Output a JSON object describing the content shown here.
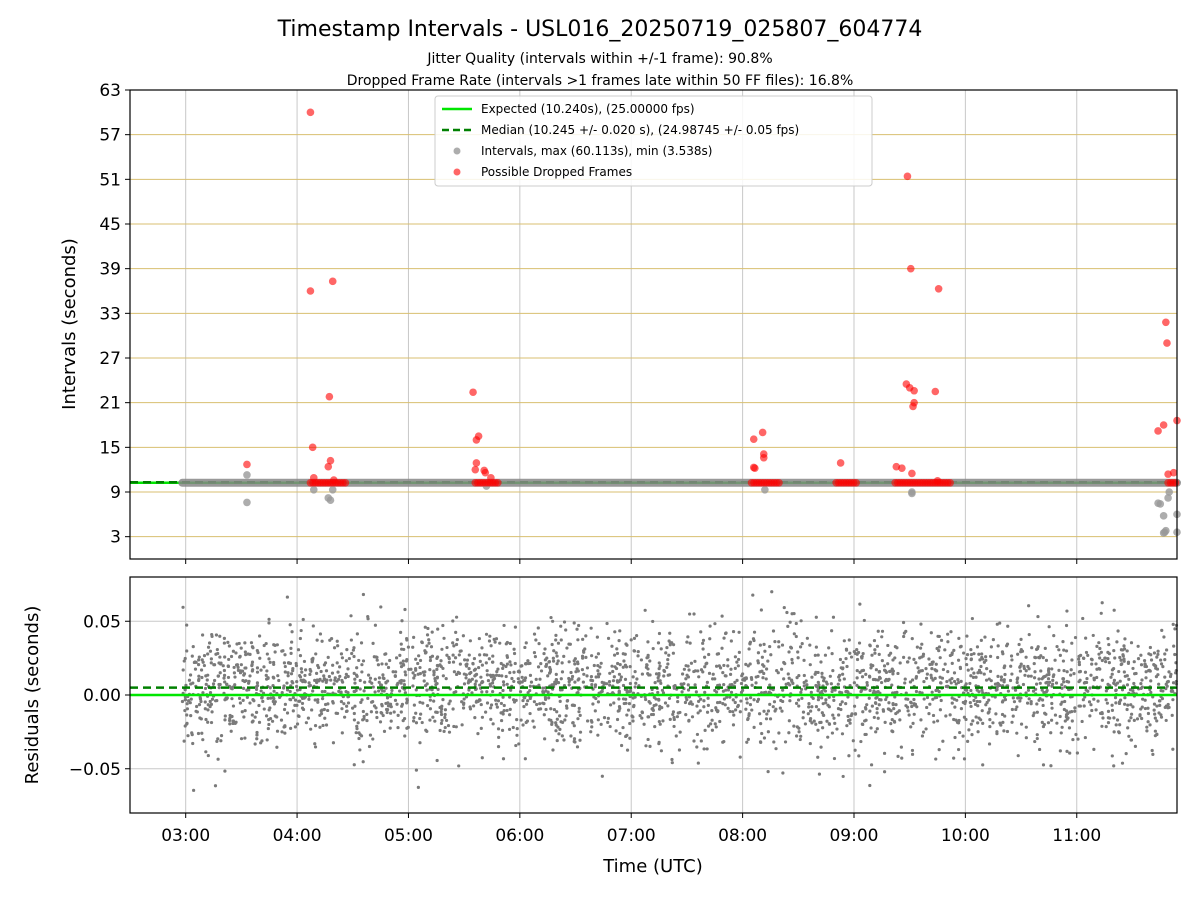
{
  "chart_data": [
    {
      "type": "scatter",
      "title": "Timestamp Intervals - USL016_20250719_025807_604774",
      "subtitle_lines": [
        "Jitter Quality (intervals within +/-1 frame): 90.8%",
        "Dropped Frame Rate (intervals >1 frames late within 50 FF files): 16.8%"
      ],
      "xlabel": "",
      "ylabel": "Intervals (seconds)",
      "x_unit": "time UTC (hours)",
      "xlim": [
        2.5,
        11.9
      ],
      "ylim": [
        0,
        63
      ],
      "y_ticks": [
        3,
        9,
        15,
        21,
        27,
        33,
        39,
        45,
        51,
        57,
        63
      ],
      "x_ticks": [
        3,
        4,
        5,
        6,
        7,
        8,
        9,
        10,
        11
      ],
      "grid": true,
      "legend_position": "top-center",
      "legend": {
        "expected": "Expected (10.240s), (25.00000 fps)",
        "median": "Median (10.245 +/- 0.020 s), (24.98745 +/- 0.05 fps)",
        "intervals": "Intervals, max (60.113s), min (3.538s)",
        "dropped": "Possible Dropped Frames"
      },
      "expected_value": 10.24,
      "median_value": 10.245,
      "colors": {
        "expected": "#00e600",
        "median": "#008000",
        "intervals": "#999999",
        "dropped": "#ff0000",
        "hgrid": "#d8bf70",
        "vgrid": "#c8c8c8"
      },
      "baseline_series": {
        "name": "Intervals, max (60.113s), min (3.538s)",
        "x_range": [
          2.97,
          11.9
        ],
        "y": 10.24
      },
      "interval_points": [
        {
          "x": 3.55,
          "y": 11.3
        },
        {
          "x": 3.55,
          "y": 7.6
        },
        {
          "x": 4.15,
          "y": 9.3
        },
        {
          "x": 4.3,
          "y": 7.9
        },
        {
          "x": 4.28,
          "y": 8.2
        },
        {
          "x": 4.32,
          "y": 9.3
        },
        {
          "x": 5.7,
          "y": 9.8
        },
        {
          "x": 8.2,
          "y": 9.3
        },
        {
          "x": 9.52,
          "y": 9.0
        },
        {
          "x": 9.52,
          "y": 8.8
        },
        {
          "x": 11.73,
          "y": 7.5
        },
        {
          "x": 11.75,
          "y": 7.4
        },
        {
          "x": 11.78,
          "y": 5.8
        },
        {
          "x": 11.79,
          "y": 3.6
        },
        {
          "x": 11.8,
          "y": 3.8
        },
        {
          "x": 11.82,
          "y": 8.2
        },
        {
          "x": 11.83,
          "y": 9.0
        },
        {
          "x": 11.9,
          "y": 6.0
        },
        {
          "x": 11.9,
          "y": 3.6
        },
        {
          "x": 11.78,
          "y": 3.5
        }
      ],
      "dropped_points": [
        {
          "x": 3.55,
          "y": 12.7
        },
        {
          "x": 4.12,
          "y": 60.0
        },
        {
          "x": 4.12,
          "y": 36.0
        },
        {
          "x": 4.14,
          "y": 15.0
        },
        {
          "x": 4.15,
          "y": 10.9
        },
        {
          "x": 4.32,
          "y": 37.3
        },
        {
          "x": 4.29,
          "y": 21.8
        },
        {
          "x": 4.3,
          "y": 13.2
        },
        {
          "x": 4.28,
          "y": 12.4
        },
        {
          "x": 4.33,
          "y": 10.6
        },
        {
          "x": 5.58,
          "y": 22.4
        },
        {
          "x": 5.63,
          "y": 16.5
        },
        {
          "x": 5.61,
          "y": 16.0
        },
        {
          "x": 5.61,
          "y": 12.9
        },
        {
          "x": 5.6,
          "y": 12.0
        },
        {
          "x": 5.68,
          "y": 11.9
        },
        {
          "x": 5.69,
          "y": 11.6
        },
        {
          "x": 5.74,
          "y": 10.9
        },
        {
          "x": 8.1,
          "y": 16.1
        },
        {
          "x": 8.18,
          "y": 17.0
        },
        {
          "x": 8.19,
          "y": 14.1
        },
        {
          "x": 8.19,
          "y": 13.6
        },
        {
          "x": 8.1,
          "y": 12.3
        },
        {
          "x": 8.11,
          "y": 12.2
        },
        {
          "x": 8.88,
          "y": 12.9
        },
        {
          "x": 9.38,
          "y": 12.4
        },
        {
          "x": 9.43,
          "y": 12.2
        },
        {
          "x": 9.48,
          "y": 51.4
        },
        {
          "x": 9.51,
          "y": 39.0
        },
        {
          "x": 9.76,
          "y": 36.3
        },
        {
          "x": 9.47,
          "y": 23.5
        },
        {
          "x": 9.5,
          "y": 23.0
        },
        {
          "x": 9.54,
          "y": 22.6
        },
        {
          "x": 9.73,
          "y": 22.5
        },
        {
          "x": 9.54,
          "y": 21.0
        },
        {
          "x": 9.53,
          "y": 20.5
        },
        {
          "x": 9.52,
          "y": 11.5
        },
        {
          "x": 9.75,
          "y": 10.5
        },
        {
          "x": 11.73,
          "y": 17.2
        },
        {
          "x": 11.78,
          "y": 18.0
        },
        {
          "x": 11.8,
          "y": 31.8
        },
        {
          "x": 11.81,
          "y": 29.0
        },
        {
          "x": 11.82,
          "y": 11.4
        },
        {
          "x": 11.9,
          "y": 18.6
        },
        {
          "x": 11.87,
          "y": 11.6
        }
      ],
      "dropped_clusters": [
        {
          "x_start": 4.12,
          "x_end": 4.45,
          "y": 10.24
        },
        {
          "x_start": 5.6,
          "x_end": 5.82,
          "y": 10.24
        },
        {
          "x_start": 8.08,
          "x_end": 8.33,
          "y": 10.24
        },
        {
          "x_start": 8.84,
          "x_end": 9.02,
          "y": 10.24
        },
        {
          "x_start": 9.37,
          "x_end": 9.88,
          "y": 10.24
        },
        {
          "x_start": 11.82,
          "x_end": 11.9,
          "y": 10.24
        }
      ]
    },
    {
      "type": "scatter",
      "title": "",
      "xlabel": "Time (UTC)",
      "ylabel": "Residuals (seconds)",
      "xlim": [
        2.5,
        11.9
      ],
      "ylim": [
        -0.08,
        0.08
      ],
      "y_ticks": [
        -0.05,
        0.0,
        0.05
      ],
      "y_tick_labels": [
        "−0.05",
        "0.00",
        "0.05"
      ],
      "x_ticks": [
        3,
        4,
        5,
        6,
        7,
        8,
        9,
        10,
        11
      ],
      "x_tick_labels": [
        "03:00",
        "04:00",
        "05:00",
        "06:00",
        "07:00",
        "08:00",
        "09:00",
        "10:00",
        "11:00"
      ],
      "grid": true,
      "expected_residual": 0.0,
      "median_residual": 0.005,
      "residual_x_range": [
        2.97,
        11.9
      ],
      "residual_distribution": {
        "mean": 0.005,
        "std": 0.02,
        "min": -0.08,
        "max": 0.07
      },
      "residual_count": 3000,
      "colors": {
        "residuals": "#7a7a7a",
        "expected": "#00e600",
        "median": "#008000",
        "grid": "#c8c8c8"
      }
    }
  ]
}
